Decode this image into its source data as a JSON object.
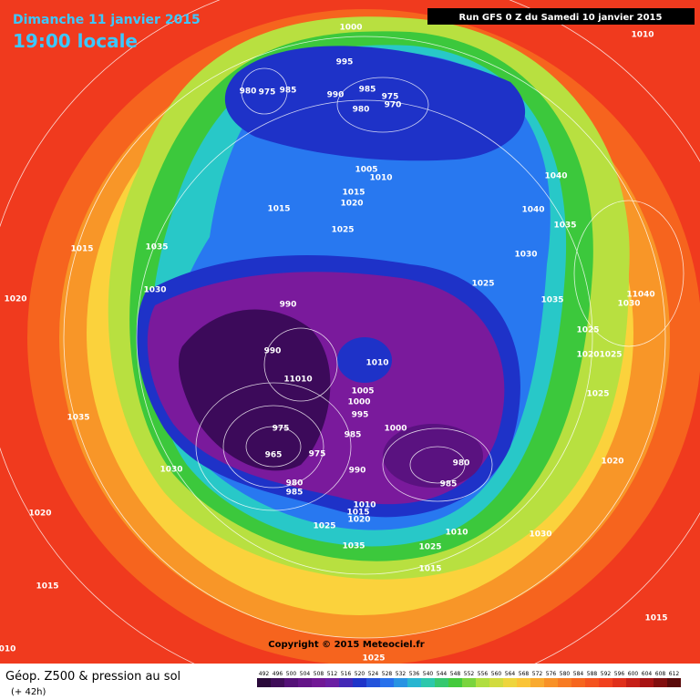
{
  "header": {
    "date": "Dimanche 11 janvier 2015",
    "time": "19:00 locale",
    "run": "Run GFS 0 Z du Samedi 10 janvier 2015"
  },
  "copyright": "Copyright © 2015 Meteociel.fr",
  "footer": {
    "title": "Géop. Z500 & pression au sol",
    "lead": "(+ 42h)"
  },
  "scale": {
    "values": [
      492,
      496,
      500,
      504,
      508,
      512,
      516,
      520,
      524,
      528,
      532,
      536,
      540,
      544,
      548,
      552,
      556,
      560,
      564,
      568,
      572,
      576,
      580,
      584,
      588,
      592,
      596,
      600,
      604,
      608,
      612
    ]
  },
  "isobar_labels": [
    "1000",
    "1010",
    "995",
    "980",
    "975",
    "985",
    "990",
    "985",
    "975",
    "970",
    "980",
    "1005",
    "1010",
    "1015",
    "1020",
    "1015",
    "1040",
    "1040",
    "1035",
    "1025",
    "1015",
    "1035",
    "1030",
    "1025",
    "1030",
    "1020",
    "990",
    "1035",
    "11040",
    "1030",
    "990",
    "1010",
    "1025",
    "1020",
    "1025",
    "11010",
    "1005",
    "1000",
    "1025",
    "995",
    "1035",
    "1000",
    "975",
    "985",
    "965",
    "975",
    "980",
    "1030",
    "990",
    "985",
    "980",
    "985",
    "1020",
    "1020",
    "1010",
    "1015",
    "1020",
    "1025",
    "1010",
    "1030",
    "1035",
    "1025",
    "1015",
    "1015",
    "1015",
    "1025",
    "010"
  ]
}
